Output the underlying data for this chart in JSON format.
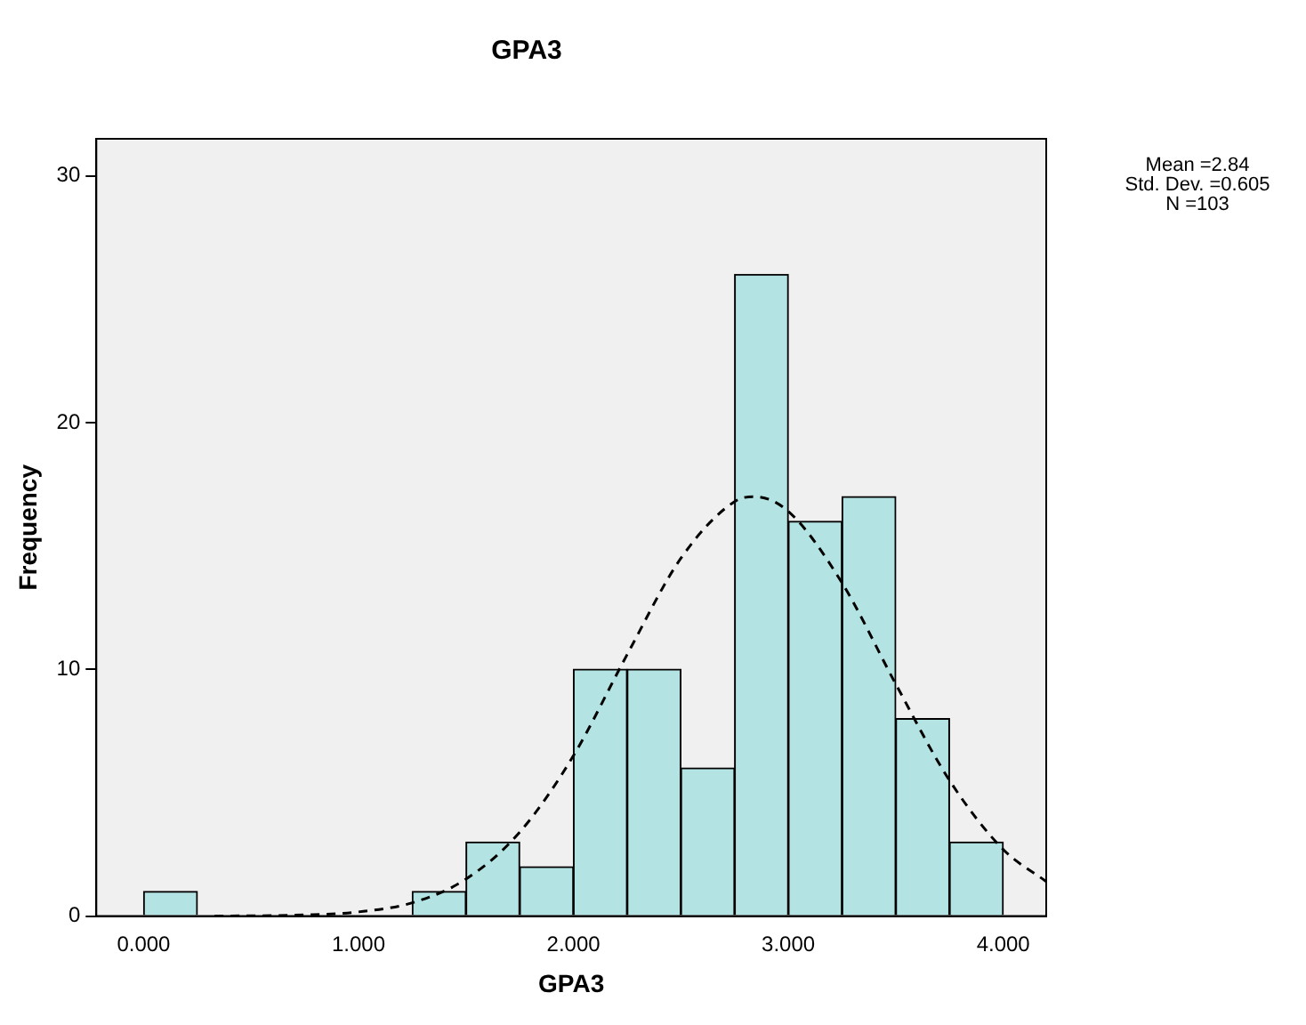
{
  "chart_data": {
    "type": "histogram",
    "title": "GPA3",
    "xlabel": "GPA3",
    "ylabel": "Frequency",
    "bins": [
      0,
      0.25,
      0.5,
      0.75,
      1,
      1.25,
      1.5,
      1.75,
      2,
      2.25,
      2.5,
      2.75,
      3,
      3.25,
      3.5,
      3.75,
      4
    ],
    "values": [
      1,
      0,
      0,
      0,
      0,
      1,
      3,
      2,
      10,
      10,
      6,
      26,
      16,
      17,
      8,
      3
    ],
    "color": "#b3e3e3",
    "series": [
      {
        "type": "line",
        "color": "#000000",
        "line_style": "dashed",
        "x": [
          0.33,
          0.75,
          1,
          1.25,
          1.5,
          1.75,
          2,
          2.25,
          2.5,
          2.75,
          2.84,
          3,
          3.25,
          3.5,
          3.75,
          4,
          4.2
        ],
        "values": [
          0,
          0.05,
          0.17,
          0.54,
          1.5,
          3.4,
          6.5,
          10.6,
          14.5,
          16.8,
          17,
          16.4,
          13.5,
          9.4,
          5.5,
          2.7,
          1.4
        ]
      }
    ],
    "marker": "none",
    "grid": false,
    "legend": false,
    "xlim": [
      -0.22,
      4.2
    ],
    "ylim": [
      0,
      31.5
    ],
    "xticks": [
      {
        "value": 0,
        "label": "0.000"
      },
      {
        "value": 1,
        "label": "1.000"
      },
      {
        "value": 2,
        "label": "2.000"
      },
      {
        "value": 3,
        "label": "3.000"
      },
      {
        "value": 4,
        "label": "4.000"
      }
    ],
    "yticks": [
      0,
      10,
      20,
      30
    ],
    "annotations": [
      "Mean =2.84",
      "Std. Dev. =0.605",
      "N =103"
    ]
  }
}
